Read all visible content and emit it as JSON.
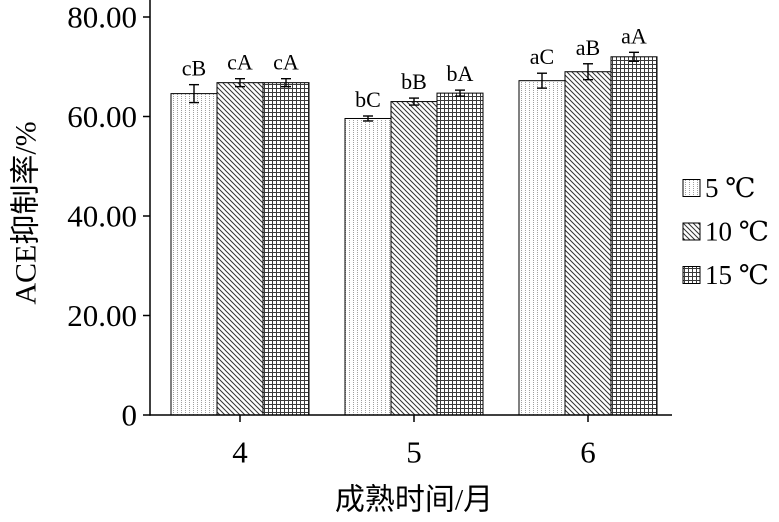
{
  "chart_data": {
    "type": "bar",
    "categories": [
      "4",
      "5",
      "6"
    ],
    "series": [
      {
        "name": "5 ℃",
        "pattern": "dots",
        "values": [
          64.6,
          59.6,
          67.2
        ],
        "errors": [
          1.8,
          0.5,
          1.5
        ],
        "labels": [
          "cB",
          "bC",
          "aC"
        ]
      },
      {
        "name": "10 ℃",
        "pattern": "diagonal",
        "values": [
          66.8,
          63.0,
          69.0
        ],
        "errors": [
          0.8,
          0.7,
          1.6
        ],
        "labels": [
          "cA",
          "bB",
          "aB"
        ]
      },
      {
        "name": "15 ℃",
        "pattern": "grid",
        "values": [
          66.8,
          64.7,
          72.0
        ],
        "errors": [
          0.8,
          0.6,
          0.9
        ],
        "labels": [
          "cA",
          "bA",
          "aA"
        ]
      }
    ],
    "xlabel": "成熟时间/月",
    "ylabel": "ACE抑制率/%",
    "ylim": [
      0,
      80
    ],
    "yticks": [
      0,
      20,
      40,
      60,
      80
    ],
    "ytick_labels": [
      "0",
      "20.00",
      "40.00",
      "60.00",
      "80.00"
    ],
    "grid": false,
    "legend": "right"
  }
}
